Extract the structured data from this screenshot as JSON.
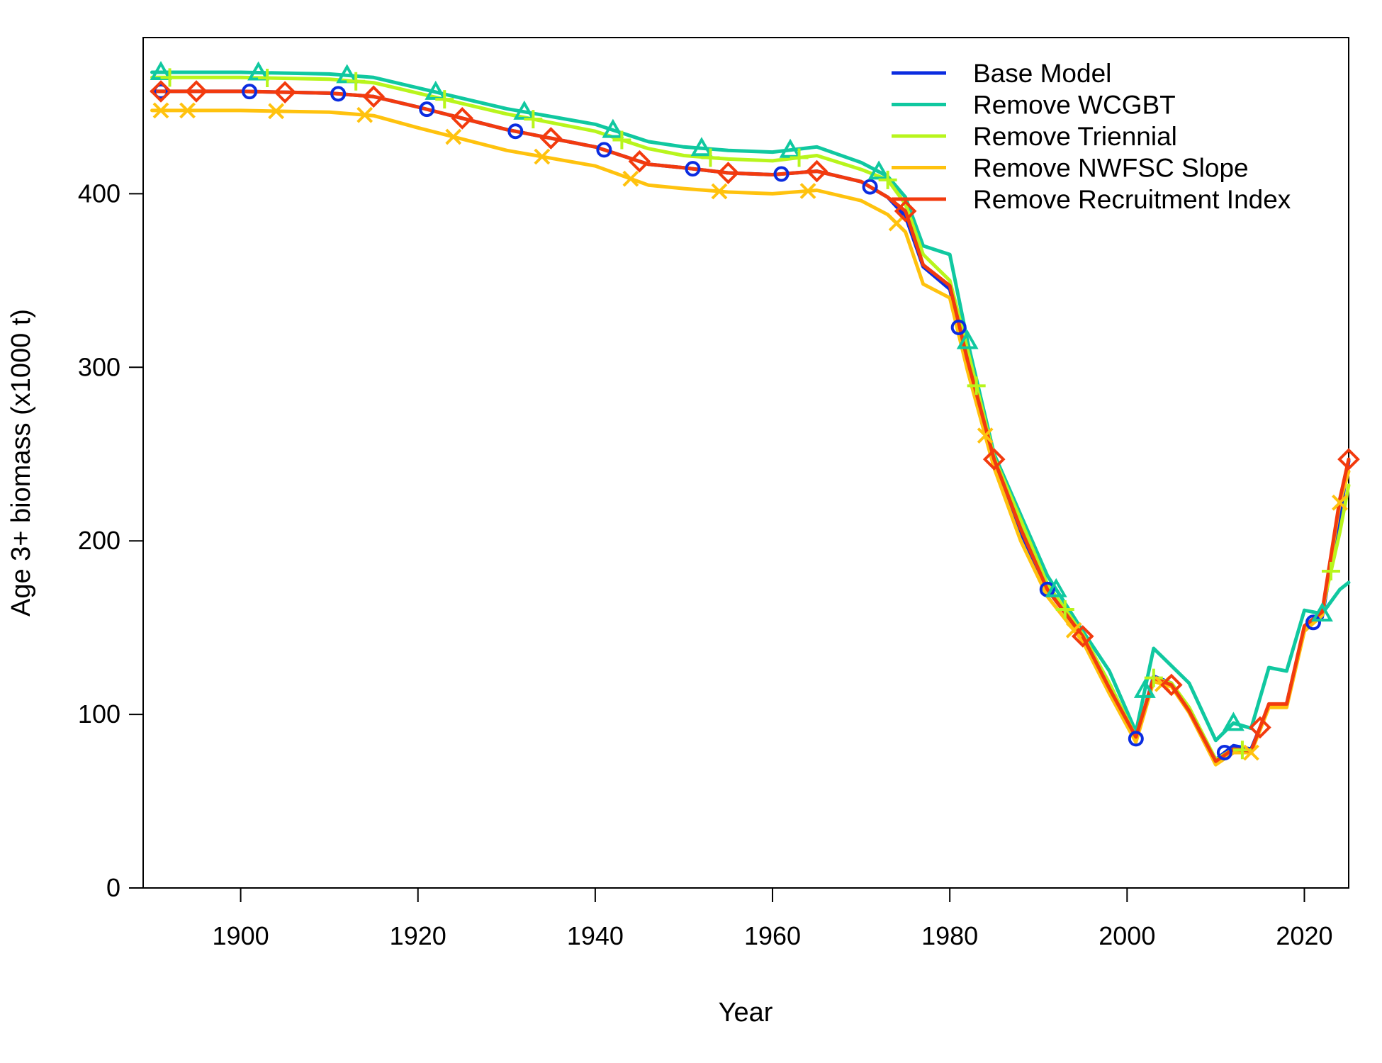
{
  "chart_data": {
    "type": "line",
    "title": "",
    "xlabel": "Year",
    "ylabel": "Age 3+ biomass (x1000 t)",
    "xlim": [
      1889,
      2025
    ],
    "ylim": [
      0,
      490
    ],
    "x_ticks": [
      1900,
      1920,
      1940,
      1960,
      1980,
      2000,
      2020
    ],
    "y_ticks": [
      0,
      100,
      200,
      300,
      400
    ],
    "grid": false,
    "legend_position": "top-right",
    "x": [
      1890,
      1900,
      1910,
      1915,
      1920,
      1930,
      1940,
      1946,
      1950,
      1955,
      1960,
      1965,
      1970,
      1973,
      1975,
      1977,
      1980,
      1982,
      1985,
      1988,
      1991,
      1995,
      1998,
      2001,
      2003,
      2005,
      2007,
      2010,
      2012,
      2014,
      2016,
      2018,
      2020,
      2022,
      2024,
      2025
    ],
    "series": [
      {
        "name": "Base Model",
        "color": "#0b2ce0",
        "marker": "circle",
        "marker_x": [
          1891,
          1901,
          1911,
          1921,
          1931,
          1941,
          1951,
          1961,
          1971,
          1981,
          1991,
          2001,
          2011,
          2021
        ],
        "values": [
          459,
          459,
          458,
          456,
          450,
          437,
          427,
          417,
          415,
          412,
          411,
          413,
          407,
          398,
          387,
          358,
          345,
          301,
          245,
          205,
          172,
          145,
          115,
          86,
          122,
          118,
          103,
          74,
          82,
          80,
          105,
          106,
          150,
          156,
          215,
          246
        ]
      },
      {
        "name": "Remove WCGBT",
        "color": "#10c8a0",
        "marker": "triangle",
        "marker_x": [
          1891,
          1902,
          1912,
          1922,
          1932,
          1942,
          1952,
          1962,
          1972,
          1982,
          1992,
          2002,
          2012,
          2022
        ],
        "values": [
          470,
          470,
          469,
          467,
          461,
          449,
          440,
          430,
          427,
          425,
          424,
          427,
          418,
          410,
          398,
          370,
          365,
          315,
          250,
          215,
          180,
          148,
          125,
          90,
          138,
          128,
          118,
          85,
          95,
          92,
          127,
          125,
          160,
          158,
          172,
          176
        ]
      },
      {
        "name": "Remove Triennial",
        "color": "#b8f51c",
        "marker": "plus",
        "marker_x": [
          1892,
          1903,
          1913,
          1923,
          1933,
          1943,
          1953,
          1963,
          1973,
          1983,
          1993,
          2003,
          2013,
          2023
        ],
        "values": [
          467,
          467,
          466,
          464,
          458,
          446,
          436,
          426,
          422,
          420,
          419,
          422,
          414,
          408,
          394,
          365,
          350,
          310,
          248,
          212,
          175,
          146,
          118,
          87,
          121,
          118,
          104,
          74,
          80,
          79,
          105,
          105,
          150,
          160,
          205,
          232
        ]
      },
      {
        "name": "Remove NWFSC Slope",
        "color": "#ffc20e",
        "marker": "x",
        "marker_x": [
          1891,
          1894,
          1904,
          1914,
          1924,
          1934,
          1944,
          1954,
          1964,
          1974,
          1984,
          1994,
          2004,
          2014,
          2024
        ],
        "values": [
          448,
          448,
          447,
          445,
          438,
          425,
          416,
          405,
          403,
          401,
          400,
          402,
          396,
          388,
          378,
          348,
          340,
          298,
          242,
          200,
          168,
          142,
          112,
          84,
          119,
          116,
          101,
          71,
          78,
          78,
          104,
          104,
          148,
          157,
          222,
          240
        ]
      },
      {
        "name": "Remove Recruitment Index",
        "color": "#f23a0e",
        "marker": "diamond",
        "marker_x": [
          1891,
          1895,
          1905,
          1915,
          1925,
          1935,
          1945,
          1955,
          1965,
          1975,
          1985,
          1995,
          2005,
          2015,
          2025
        ],
        "values": [
          459,
          459,
          458,
          456,
          450,
          437,
          427,
          417,
          415,
          412,
          411,
          413,
          407,
          398,
          390,
          359,
          347,
          304,
          247,
          207,
          172,
          145,
          115,
          87,
          121,
          117,
          102,
          73,
          80,
          79,
          106,
          106,
          151,
          159,
          224,
          247
        ]
      }
    ]
  }
}
